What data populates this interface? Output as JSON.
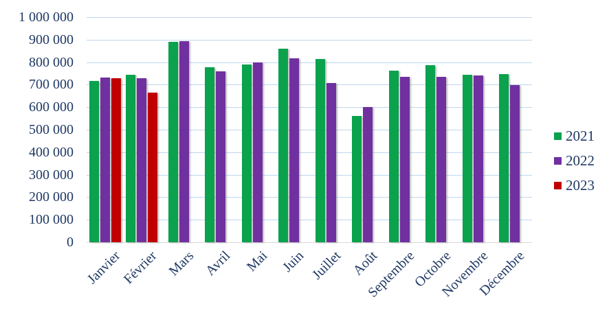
{
  "chart_data": {
    "type": "bar",
    "title": "",
    "categories": [
      "Janvier",
      "Février",
      "Mars",
      "Avril",
      "Mai",
      "Juin",
      "Juillet",
      "Août",
      "Septembre",
      "Octobre",
      "Novembre",
      "Décembre"
    ],
    "series": [
      {
        "name": "2021",
        "color": "#0AA24D",
        "values": [
          718000,
          743000,
          891000,
          779000,
          790000,
          859000,
          814000,
          560000,
          761000,
          787000,
          745000,
          746000
        ]
      },
      {
        "name": "2022",
        "color": "#7030A0",
        "values": [
          732000,
          729000,
          892000,
          758000,
          799000,
          818000,
          707000,
          602000,
          735000,
          735000,
          740000,
          699000
        ]
      },
      {
        "name": "2023",
        "color": "#C00000",
        "values": [
          728000,
          665000,
          null,
          null,
          null,
          null,
          null,
          null,
          null,
          null,
          null,
          null
        ]
      }
    ],
    "ylim": [
      0,
      1000000
    ],
    "ytick_step": 100000,
    "ytick_labels_top_down": [
      "1 000 000",
      "900 000",
      "800 000",
      "700 000",
      "600 000",
      "500 000",
      "400 000",
      "300 000",
      "200 000",
      "100 000",
      "0"
    ],
    "grid": true,
    "legend_position": "right",
    "colors": {
      "axis_text": "#1F3864",
      "gridline": "#BDD7EE",
      "axis_line": "#D9D9D9",
      "background": "#FFFFFF"
    }
  }
}
